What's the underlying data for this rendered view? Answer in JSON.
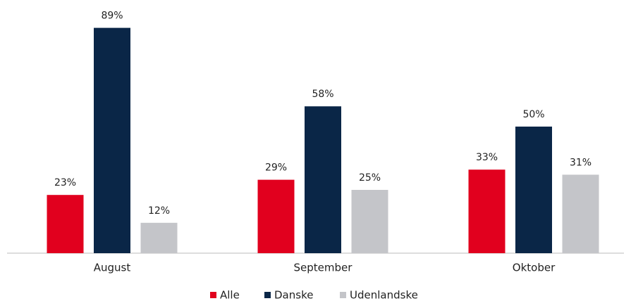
{
  "chart_data": {
    "type": "bar",
    "categories": [
      "August",
      "September",
      "Oktober"
    ],
    "series": [
      {
        "name": "Alle",
        "color": "#e1001e",
        "values": [
          23,
          29,
          33
        ],
        "value_labels": [
          "23%",
          "29%",
          "33%"
        ]
      },
      {
        "name": "Danske",
        "color": "#0a2647",
        "values": [
          89,
          58,
          50
        ],
        "value_labels": [
          "89%",
          "58%",
          "50%"
        ]
      },
      {
        "name": "Udenlandske",
        "color": "#c4c5c9",
        "values": [
          12,
          25,
          31
        ],
        "value_labels": [
          "12%",
          "25%",
          "31%"
        ]
      }
    ],
    "legend": "bottom"
  }
}
